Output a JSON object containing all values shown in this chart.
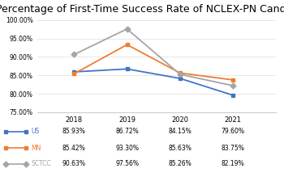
{
  "title": "Percentage of First-Time Success Rate of NCLEX-PN Candidates",
  "years": [
    2018,
    2019,
    2020,
    2021
  ],
  "series": {
    "US": {
      "values": [
        0.8593,
        0.8672,
        0.8415,
        0.796
      ],
      "color": "#4472C4",
      "marker": "s",
      "label": "US",
      "table_row": [
        "85.93%",
        "86.72%",
        "84.15%",
        "79.60%"
      ]
    },
    "MN": {
      "values": [
        0.8542,
        0.933,
        0.8563,
        0.8375
      ],
      "color": "#ED7D31",
      "marker": "s",
      "label": "MN",
      "table_row": [
        "85.42%",
        "93.30%",
        "85.63%",
        "83.75%"
      ]
    },
    "SCTCC": {
      "values": [
        0.9063,
        0.9756,
        0.8526,
        0.8219
      ],
      "color": "#A5A5A5",
      "marker": "D",
      "label": "SCTCC",
      "table_row": [
        "90.63%",
        "97.56%",
        "85.26%",
        "82.19%"
      ]
    }
  },
  "ylim": [
    0.75,
    1.005
  ],
  "yticks": [
    0.75,
    0.8,
    0.85,
    0.9,
    0.95,
    1.0
  ],
  "ytick_labels": [
    "75.00%",
    "80.00%",
    "85.00%",
    "90.00%",
    "95.00%",
    "100.00%"
  ],
  "background_color": "#FFFFFF",
  "title_fontsize": 9.0,
  "legend_order": [
    "US",
    "MN",
    "SCTCC"
  ],
  "xlim": [
    2017.3,
    2021.8
  ]
}
